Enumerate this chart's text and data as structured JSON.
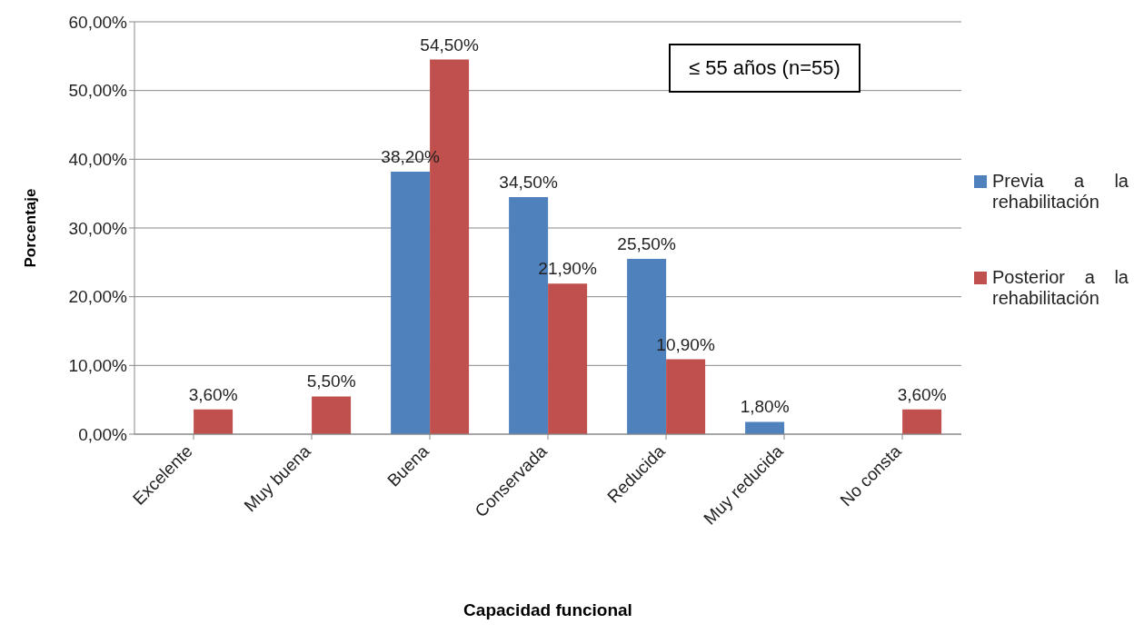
{
  "chart_data": {
    "type": "bar",
    "xlabel": "Capacidad funcional",
    "ylabel": "Porcentaje",
    "categories": [
      "Excelente",
      "Muy buena",
      "Buena",
      "Conservada",
      "Reducida",
      "Muy reducida",
      "No consta"
    ],
    "series": [
      {
        "name": "Previa a la rehabilitación",
        "color": "#4f81bd",
        "values": [
          null,
          null,
          38.2,
          34.5,
          25.5,
          1.8,
          null
        ],
        "value_labels": [
          null,
          null,
          "38,20%",
          "34,50%",
          "25,50%",
          "1,80%",
          null
        ]
      },
      {
        "name": "Posterior a la rehabilitación",
        "color": "#c0504d",
        "values": [
          3.6,
          5.5,
          54.5,
          21.9,
          10.9,
          null,
          3.6
        ],
        "value_labels": [
          "3,60%",
          "5,50%",
          "54,50%",
          "21,90%",
          "10,90%",
          null,
          "3,60%"
        ]
      }
    ],
    "ylim": [
      0,
      60
    ],
    "yticks": [
      {
        "value": 0,
        "label": "0,00%"
      },
      {
        "value": 10,
        "label": "10,00%"
      },
      {
        "value": 20,
        "label": "20,00%"
      },
      {
        "value": 30,
        "label": "30,00%"
      },
      {
        "value": 40,
        "label": "40,00%"
      },
      {
        "value": 50,
        "label": "50,00%"
      },
      {
        "value": 60,
        "label": "60,00%"
      }
    ],
    "grid": "y",
    "legend": "right",
    "annotations": [
      "≤ 55 años (n=55)"
    ]
  }
}
